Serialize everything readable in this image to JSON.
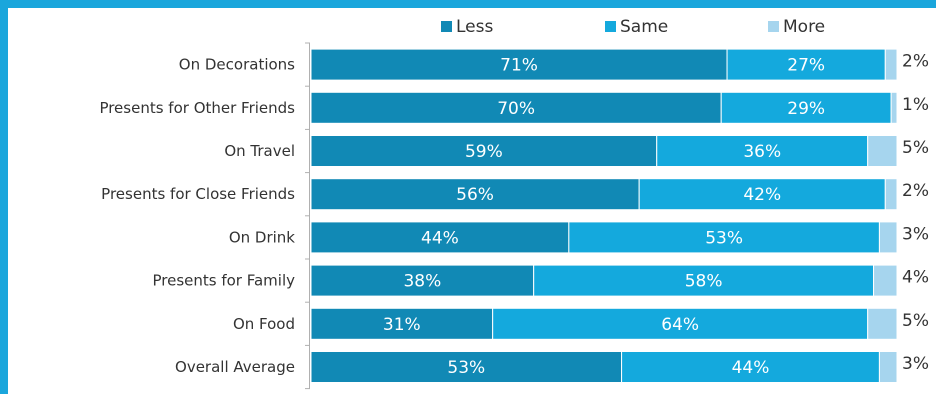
{
  "chart_data": {
    "type": "bar",
    "orientation": "horizontal",
    "stacked": true,
    "categories": [
      "On Decorations",
      "Presents for Other Friends",
      "On Travel",
      "Presents for Close Friends",
      "On Drink",
      "Presents for Family",
      "On Food",
      "Overall Average"
    ],
    "series": [
      {
        "name": "Less",
        "color": "#1189b5",
        "values": [
          71,
          70,
          59,
          56,
          44,
          38,
          31,
          53
        ]
      },
      {
        "name": "Same",
        "color": "#14a9dd",
        "values": [
          27,
          29,
          36,
          42,
          53,
          58,
          64,
          44
        ]
      },
      {
        "name": "More",
        "color": "#a6d5ee",
        "values": [
          2,
          1,
          5,
          2,
          3,
          4,
          5,
          3
        ]
      }
    ],
    "value_suffix": "%",
    "xlim": [
      0,
      100
    ],
    "legend_position": "top",
    "grid": false
  }
}
